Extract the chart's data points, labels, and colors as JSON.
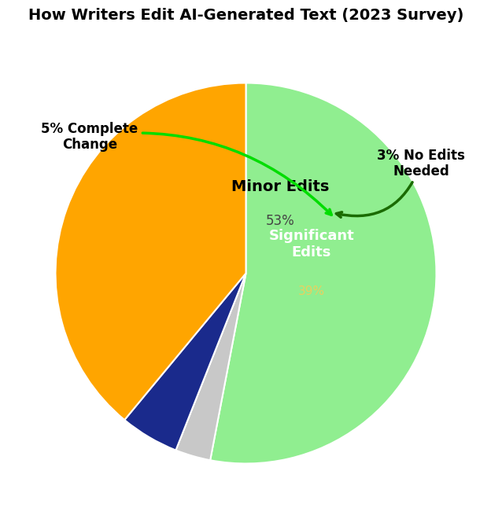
{
  "title": "How Writers Edit AI-Generated Text (2023 Survey)",
  "slices": [
    {
      "label": "Minor Edits",
      "pct": 53,
      "color": "#90EE90"
    },
    {
      "label": "No Edits Needed",
      "pct": 3,
      "color": "#C8C8C8"
    },
    {
      "label": "Complete Change",
      "pct": 5,
      "color": "#1A2A8C"
    },
    {
      "label": "Significant Edits",
      "pct": 39,
      "color": "#FFA500"
    }
  ],
  "background_color": "#ffffff",
  "title_fontsize": 14,
  "title_fontweight": "bold",
  "minor_label": "Minor Edits",
  "minor_pct": "53%",
  "sig_label": "Significant\nEdits",
  "sig_pct": "39%",
  "ext_label_complete": "5% Complete\nChange",
  "ext_label_noedits": "3% No Edits\nNeeded",
  "arrow_bright_green": "#00DD00",
  "arrow_dark_green": "#1A6B00"
}
